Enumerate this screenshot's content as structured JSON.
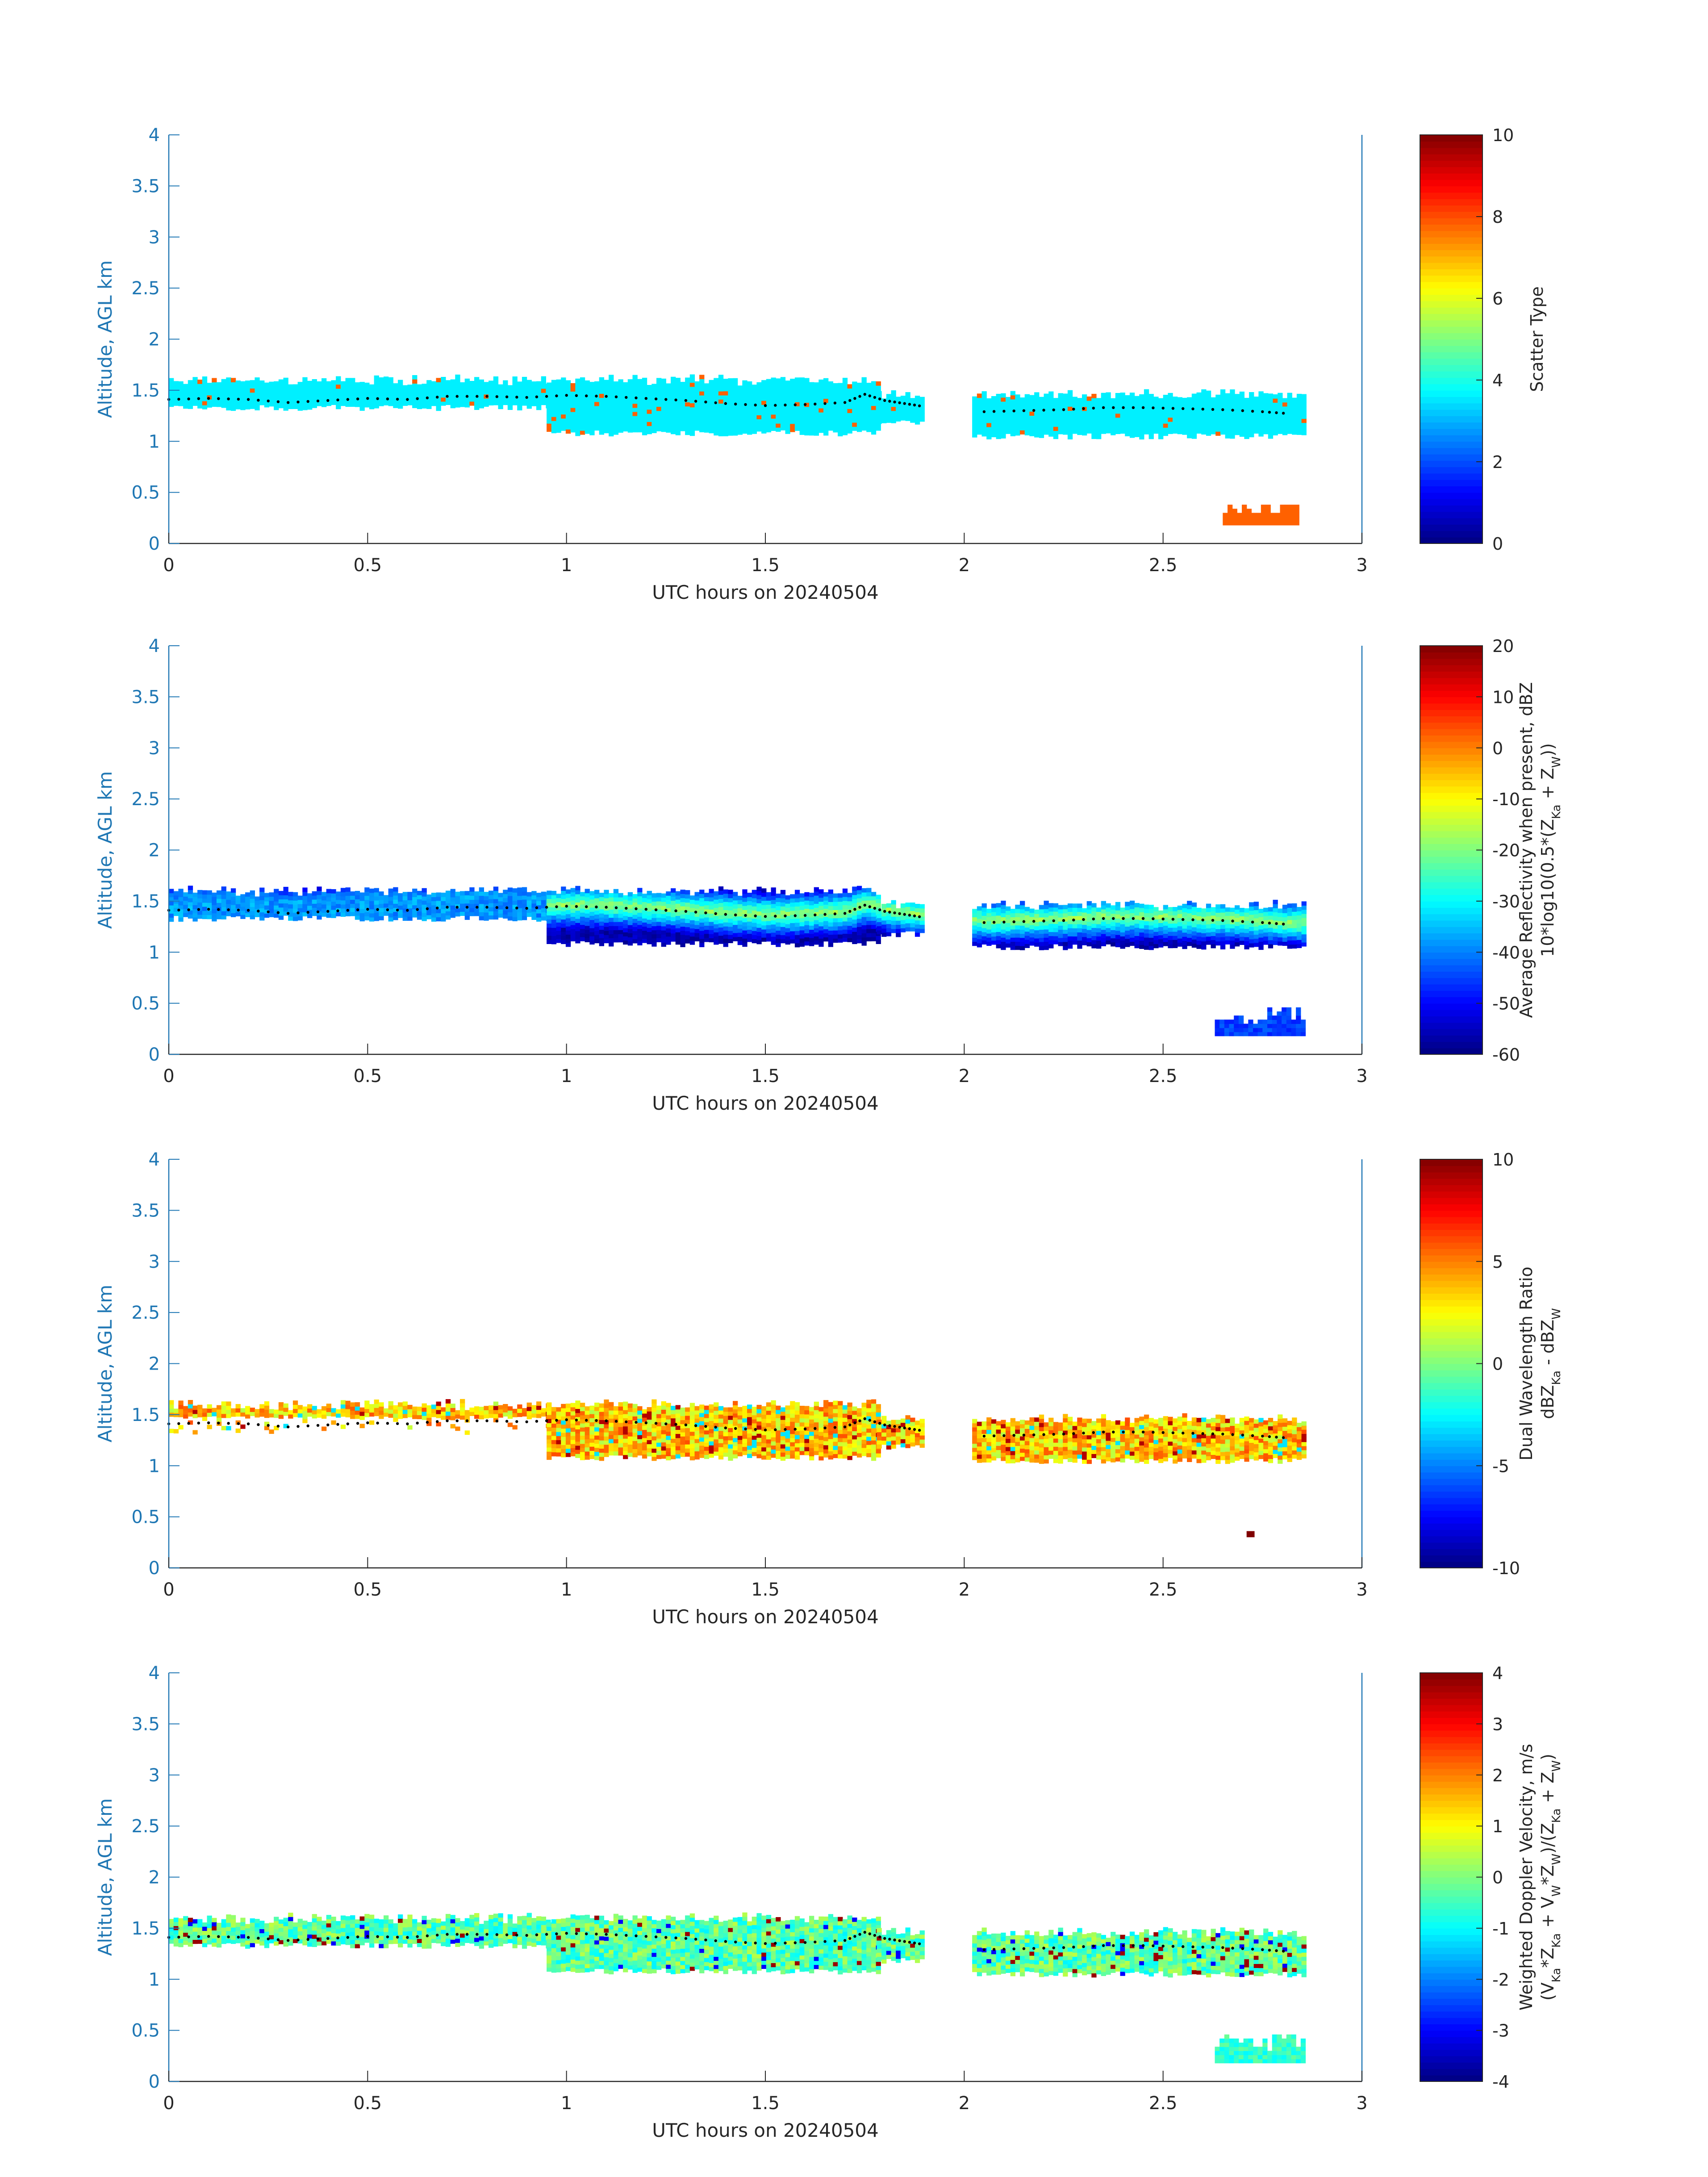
{
  "figure": {
    "background": "#ffffff",
    "axis_color": "#1f77b4",
    "text_color": "#262626",
    "shared_ylabel": "Altitude, AGL km",
    "shared_xlabel": "UTC hours on 20240504"
  },
  "chart_data": [
    {
      "type": "heatmap",
      "xlabel": "UTC hours on 20240504",
      "ylabel": "Altitude, AGL km",
      "xlim": [
        0,
        3
      ],
      "ylim": [
        0,
        4
      ],
      "xticks": [
        "0",
        "0.5",
        "1",
        "1.5",
        "2",
        "2.5",
        "3"
      ],
      "yticks": [
        "0",
        "0.5",
        "1",
        "1.5",
        "2",
        "2.5",
        "3",
        "3.5",
        "4"
      ],
      "colorbar": {
        "label_lines": [
          "Scatter Type"
        ],
        "range": [
          0,
          10
        ],
        "ticks": [
          "0",
          "2",
          "4",
          "6",
          "8",
          "10"
        ]
      },
      "field": "scatter",
      "layer_top_km": 1.62,
      "layer_dominant_value": 3.6,
      "secondary_value": 7.8,
      "low_feature": {
        "x_start": 2.65,
        "x_end": 2.84,
        "y_low": 0.18,
        "y_high": 0.38,
        "value": 7.8
      }
    },
    {
      "type": "heatmap",
      "xlabel": "UTC hours on 20240504",
      "ylabel": "Altitude, AGL km",
      "xlim": [
        0,
        3
      ],
      "ylim": [
        0,
        4
      ],
      "xticks": [
        "0",
        "0.5",
        "1",
        "1.5",
        "2",
        "2.5",
        "3"
      ],
      "yticks": [
        "0",
        "0.5",
        "1",
        "1.5",
        "2",
        "2.5",
        "3",
        "3.5",
        "4"
      ],
      "colorbar": {
        "label_lines": [
          "Average Reflectivity when present, dBZ",
          "10*log10(0.5*(Z_Ka + Z_W))"
        ],
        "range": [
          -60,
          20
        ],
        "ticks": [
          "-60",
          "-50",
          "-40",
          "-30",
          "-20",
          "-10",
          "0",
          "10",
          "20"
        ]
      },
      "field": "reflectivity",
      "layer_top_km": 1.62,
      "peak_value_dbz": -18,
      "edge_value_dbz": -56,
      "low_feature": {
        "x_start": 2.63,
        "x_end": 2.85,
        "y_low": 0.18,
        "y_high": 0.45,
        "value": -45
      }
    },
    {
      "type": "heatmap",
      "xlabel": "UTC hours on 20240504",
      "ylabel": "Altitude, AGL km",
      "xlim": [
        0,
        3
      ],
      "ylim": [
        0,
        4
      ],
      "xticks": [
        "0",
        "0.5",
        "1",
        "1.5",
        "2",
        "2.5",
        "3"
      ],
      "yticks": [
        "0",
        "0.5",
        "1",
        "1.5",
        "2",
        "2.5",
        "3",
        "3.5",
        "4"
      ],
      "colorbar": {
        "label_lines": [
          "Dual Wavelength Ratio",
          "dBZ_Ka - dBZ_W"
        ],
        "range": [
          -10,
          10
        ],
        "ticks": [
          "-10",
          "-5",
          "0",
          "5",
          "10"
        ]
      },
      "field": "dwr",
      "layer_top_km": 1.62,
      "typical_value_db": 3.5,
      "isolated_point": {
        "x": 2.71,
        "y": 0.3,
        "value": 10
      }
    },
    {
      "type": "heatmap",
      "xlabel": "UTC hours on 20240504",
      "ylabel": "Altitude, AGL km",
      "xlim": [
        0,
        3
      ],
      "ylim": [
        0,
        4
      ],
      "xticks": [
        "0",
        "0.5",
        "1",
        "1.5",
        "2",
        "2.5",
        "3"
      ],
      "yticks": [
        "0",
        "0.5",
        "1",
        "1.5",
        "2",
        "2.5",
        "3",
        "3.5",
        "4"
      ],
      "colorbar": {
        "label_lines": [
          "Weighted Doppler Velocity, m/s",
          "(V_Ka*Z_Ka + V_W*Z_W)/(Z_Ka + Z_W)"
        ],
        "range": [
          -4,
          4
        ],
        "ticks": [
          "-4",
          "-3",
          "-2",
          "-1",
          "0",
          "1",
          "2",
          "3",
          "4"
        ]
      },
      "field": "velocity",
      "layer_top_km": 1.62,
      "typical_value_ms": -0.3,
      "low_feature": {
        "x_start": 2.63,
        "x_end": 2.85,
        "y_low": 0.18,
        "y_high": 0.45,
        "value": -0.6
      }
    }
  ],
  "dotted_line": {
    "description": "black dotted trace inside the cloud layer (shared by all panels)",
    "points": [
      [
        0.0,
        1.41
      ],
      [
        0.1,
        1.42
      ],
      [
        0.2,
        1.41
      ],
      [
        0.3,
        1.38
      ],
      [
        0.4,
        1.4
      ],
      [
        0.5,
        1.42
      ],
      [
        0.6,
        1.41
      ],
      [
        0.7,
        1.44
      ],
      [
        0.8,
        1.44
      ],
      [
        0.9,
        1.43
      ],
      [
        1.0,
        1.45
      ],
      [
        1.1,
        1.44
      ],
      [
        1.2,
        1.42
      ],
      [
        1.3,
        1.4
      ],
      [
        1.4,
        1.37
      ],
      [
        1.5,
        1.35
      ],
      [
        1.6,
        1.36
      ],
      [
        1.7,
        1.38
      ],
      [
        1.75,
        1.46
      ],
      [
        1.8,
        1.4
      ],
      [
        1.85,
        1.37
      ],
      [
        1.9,
        1.34
      ],
      [
        2.05,
        1.29
      ],
      [
        2.15,
        1.3
      ],
      [
        2.25,
        1.31
      ],
      [
        2.35,
        1.33
      ],
      [
        2.45,
        1.33
      ],
      [
        2.55,
        1.32
      ],
      [
        2.65,
        1.31
      ],
      [
        2.75,
        1.29
      ],
      [
        2.82,
        1.27
      ]
    ],
    "color": "#000000"
  },
  "cloud_layer": {
    "segments": [
      {
        "x_start": 0.0,
        "x_end": 0.95,
        "bottom": 1.3,
        "top": 1.62
      },
      {
        "x_start": 0.95,
        "x_end": 1.78,
        "bottom": 1.05,
        "top": 1.62
      },
      {
        "x_start": 1.78,
        "x_end": 1.9,
        "bottom": 1.15,
        "top": 1.48
      },
      {
        "x_start": 2.02,
        "x_end": 2.85,
        "bottom": 1.02,
        "top": 1.48
      }
    ]
  }
}
